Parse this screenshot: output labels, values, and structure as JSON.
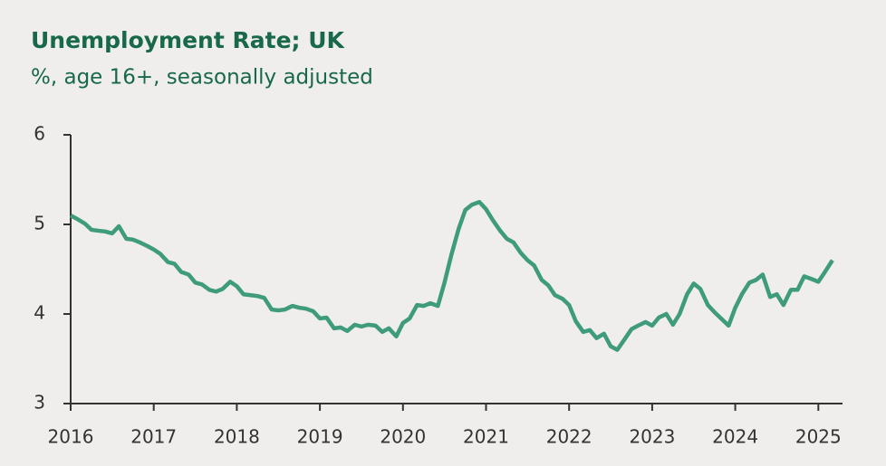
{
  "chart_data": {
    "type": "line",
    "title": "Unemployment Rate; UK",
    "subtitle": "%, age 16+, seasonally adjusted",
    "x": [
      2016,
      2016.08,
      2016.17,
      2016.25,
      2016.33,
      2016.42,
      2016.5,
      2016.58,
      2016.67,
      2016.75,
      2016.83,
      2016.92,
      2017,
      2017.08,
      2017.17,
      2017.25,
      2017.33,
      2017.42,
      2017.5,
      2017.58,
      2017.67,
      2017.75,
      2017.83,
      2017.92,
      2018,
      2018.08,
      2018.17,
      2018.25,
      2018.33,
      2018.42,
      2018.5,
      2018.58,
      2018.67,
      2018.75,
      2018.83,
      2018.92,
      2019,
      2019.08,
      2019.17,
      2019.25,
      2019.33,
      2019.42,
      2019.5,
      2019.58,
      2019.67,
      2019.75,
      2019.83,
      2019.92,
      2020,
      2020.08,
      2020.17,
      2020.25,
      2020.33,
      2020.42,
      2020.5,
      2020.58,
      2020.67,
      2020.75,
      2020.83,
      2020.92,
      2021,
      2021.08,
      2021.17,
      2021.25,
      2021.33,
      2021.42,
      2021.5,
      2021.58,
      2021.67,
      2021.75,
      2021.83,
      2021.92,
      2022,
      2022.08,
      2022.17,
      2022.25,
      2022.33,
      2022.42,
      2022.5,
      2022.58,
      2022.67,
      2022.75,
      2022.83,
      2022.92,
      2023,
      2023.08,
      2023.17,
      2023.25,
      2023.33,
      2023.42,
      2023.5,
      2023.58,
      2023.67,
      2023.75,
      2023.83,
      2023.92,
      2024,
      2024.08,
      2024.17,
      2024.25,
      2024.33,
      2024.42,
      2024.5,
      2024.58,
      2024.67,
      2024.75,
      2024.83,
      2024.92,
      2025,
      2025.08,
      2025.17
    ],
    "series": [
      {
        "name": "Unemployment rate",
        "color": "#3e9b7b",
        "values": [
          5.1,
          5.06,
          5.01,
          4.94,
          4.93,
          4.92,
          4.9,
          4.98,
          4.84,
          4.83,
          4.8,
          4.76,
          4.72,
          4.67,
          4.58,
          4.56,
          4.47,
          4.44,
          4.35,
          4.33,
          4.27,
          4.25,
          4.28,
          4.36,
          4.31,
          4.22,
          4.21,
          4.2,
          4.18,
          4.05,
          4.04,
          4.05,
          4.09,
          4.07,
          4.06,
          4.03,
          3.95,
          3.96,
          3.84,
          3.85,
          3.81,
          3.88,
          3.86,
          3.88,
          3.87,
          3.8,
          3.84,
          3.75,
          3.9,
          3.95,
          4.1,
          4.09,
          4.12,
          4.09,
          4.35,
          4.65,
          4.95,
          5.16,
          5.22,
          5.25,
          5.17,
          5.05,
          4.93,
          4.84,
          4.8,
          4.68,
          4.6,
          4.54,
          4.38,
          4.32,
          4.21,
          4.17,
          4.1,
          3.92,
          3.8,
          3.82,
          3.73,
          3.78,
          3.64,
          3.6,
          3.72,
          3.83,
          3.87,
          3.91,
          3.87,
          3.96,
          4.0,
          3.88,
          4.0,
          4.22,
          4.34,
          4.28,
          4.1,
          4.02,
          3.95,
          3.87,
          4.07,
          4.22,
          4.35,
          4.38,
          4.44,
          4.19,
          4.22,
          4.1,
          4.27,
          4.27,
          4.42,
          4.39,
          4.36,
          4.47,
          4.6
        ]
      }
    ],
    "xlim": [
      2016,
      2025.3
    ],
    "xticks": [
      2016,
      2017,
      2018,
      2019,
      2020,
      2021,
      2022,
      2023,
      2024,
      2025
    ],
    "ylim": [
      3,
      6
    ],
    "yticks": [
      3,
      4,
      5,
      6
    ]
  }
}
